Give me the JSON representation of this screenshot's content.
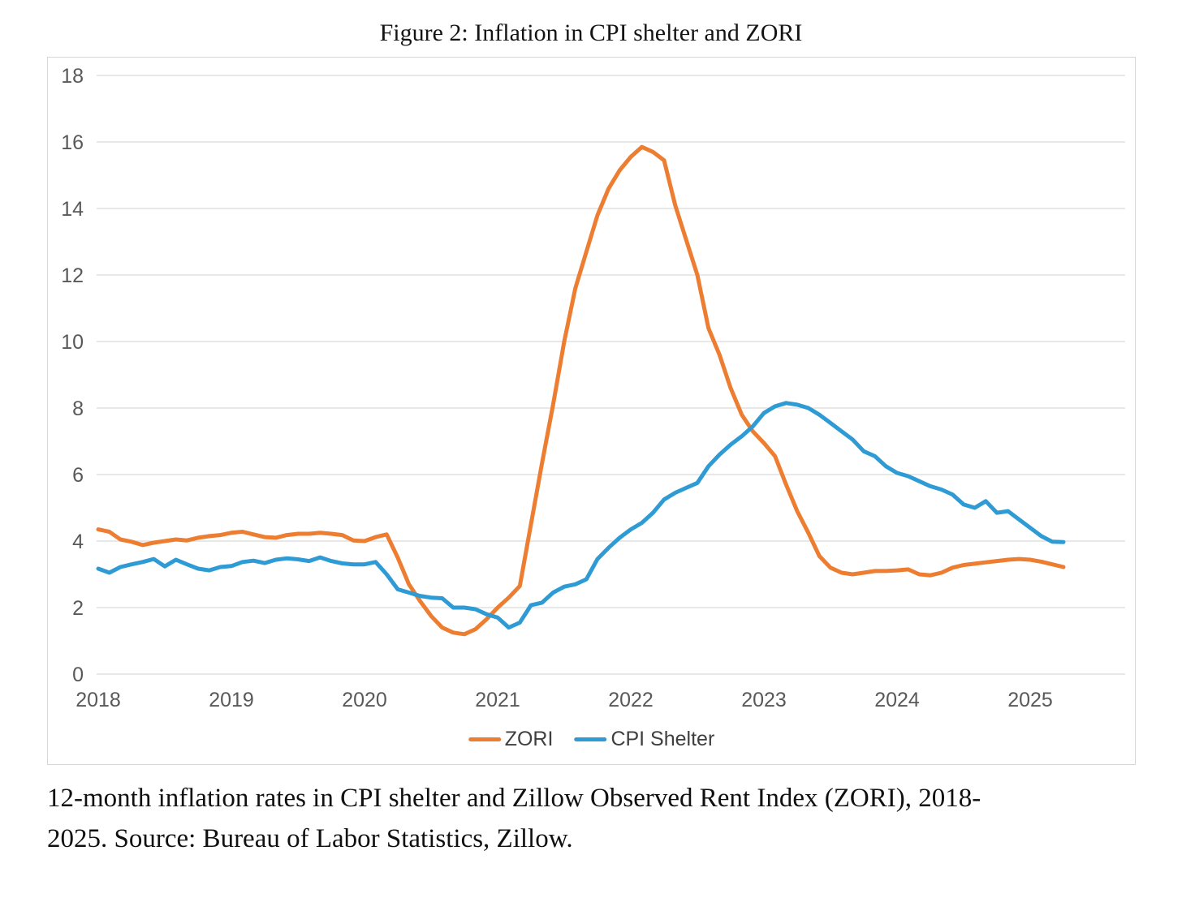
{
  "title": "Figure 2: Inflation in CPI shelter and ZORI",
  "caption_line1": "12-month inflation rates in CPI shelter and Zillow Observed Rent Index (ZORI), 2018-",
  "caption_line2": "2025. Source: Bureau of Labor Statistics, Zillow.",
  "legend": [
    {
      "label": "ZORI",
      "color": "#ED7D31"
    },
    {
      "label": "CPI Shelter",
      "color": "#2E9BD5"
    }
  ],
  "colors": {
    "grid": "#d9d9d9",
    "tick_label": "#595959",
    "chart_border": "#d6d6d6",
    "zori": "#ED7D31",
    "cpi_shelter": "#2E9BD5"
  },
  "chart_data": {
    "type": "line",
    "title": "Figure 2: Inflation in CPI shelter and ZORI",
    "x_start": "2018-01",
    "x_interval": "monthly",
    "x_tick_labels": [
      "2018",
      "2019",
      "2020",
      "2021",
      "2022",
      "2023",
      "2024",
      "2025"
    ],
    "months_per_tick": 12,
    "ylim": [
      0,
      18
    ],
    "y_ticks": [
      0,
      2,
      4,
      6,
      8,
      10,
      12,
      14,
      16,
      18
    ],
    "grid": "horizontal",
    "legend_position": "bottom",
    "series": [
      {
        "name": "ZORI",
        "color": "#ED7D31",
        "values": [
          4.35,
          4.28,
          4.05,
          3.98,
          3.88,
          3.95,
          4.0,
          4.05,
          4.02,
          4.1,
          4.15,
          4.18,
          4.25,
          4.28,
          4.2,
          4.12,
          4.1,
          4.18,
          4.22,
          4.22,
          4.25,
          4.22,
          4.18,
          4.02,
          4.0,
          4.12,
          4.2,
          3.5,
          2.7,
          2.2,
          1.75,
          1.4,
          1.25,
          1.2,
          1.35,
          1.65,
          2.0,
          2.3,
          2.65,
          4.5,
          6.35,
          8.1,
          10.0,
          11.6,
          12.7,
          13.8,
          14.6,
          15.15,
          15.55,
          15.85,
          15.7,
          15.45,
          14.1,
          13.05,
          12.0,
          10.4,
          9.6,
          8.6,
          7.8,
          7.3,
          6.95,
          6.55,
          5.7,
          4.9,
          4.25,
          3.55,
          3.2,
          3.05,
          3.0,
          3.05,
          3.1,
          3.1,
          3.12,
          3.15,
          3.0,
          2.97,
          3.05,
          3.2,
          3.28,
          3.32,
          3.36,
          3.4,
          3.44,
          3.46,
          3.44,
          3.38,
          3.3,
          3.22
        ]
      },
      {
        "name": "CPI Shelter",
        "color": "#2E9BD5",
        "values": [
          3.17,
          3.05,
          3.22,
          3.3,
          3.37,
          3.46,
          3.24,
          3.44,
          3.3,
          3.17,
          3.12,
          3.22,
          3.25,
          3.37,
          3.41,
          3.34,
          3.44,
          3.48,
          3.45,
          3.4,
          3.51,
          3.4,
          3.33,
          3.3,
          3.3,
          3.37,
          3.0,
          2.55,
          2.45,
          2.35,
          2.3,
          2.28,
          2.0,
          2.0,
          1.95,
          1.8,
          1.7,
          1.4,
          1.55,
          2.07,
          2.15,
          2.45,
          2.63,
          2.7,
          2.85,
          3.46,
          3.8,
          4.1,
          4.35,
          4.55,
          4.85,
          5.25,
          5.45,
          5.6,
          5.75,
          6.25,
          6.6,
          6.9,
          7.15,
          7.45,
          7.85,
          8.05,
          8.15,
          8.1,
          8.0,
          7.8,
          7.55,
          7.3,
          7.05,
          6.7,
          6.55,
          6.25,
          6.05,
          5.95,
          5.8,
          5.65,
          5.55,
          5.4,
          5.1,
          5.0,
          5.2,
          4.85,
          4.9,
          4.65,
          4.4,
          4.15,
          3.98,
          3.97
        ]
      }
    ]
  }
}
